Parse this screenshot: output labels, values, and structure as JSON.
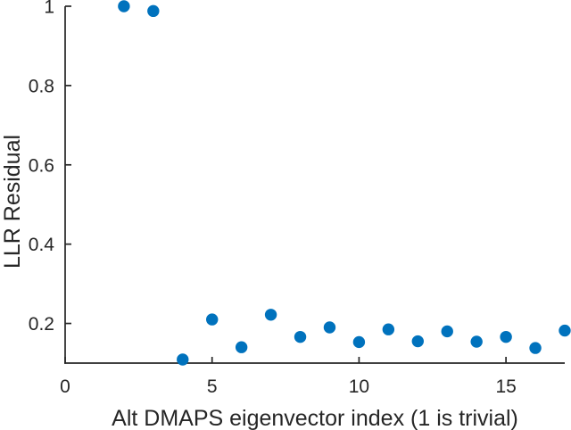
{
  "chart_data": {
    "type": "scatter",
    "title": "",
    "xlabel": "Alt DMAPS eigenvector index (1 is trivial)",
    "ylabel": "LLR Residual",
    "x": [
      2,
      3,
      4,
      5,
      6,
      7,
      8,
      9,
      10,
      11,
      12,
      13,
      14,
      15,
      16,
      17
    ],
    "y": [
      1.0,
      0.988,
      0.109,
      0.21,
      0.14,
      0.222,
      0.166,
      0.19,
      0.153,
      0.185,
      0.155,
      0.18,
      0.154,
      0.166,
      0.138,
      0.182
    ],
    "xlim": [
      0,
      17
    ],
    "ylim": [
      0.1,
      1.0
    ],
    "xticks": [
      0,
      5,
      10,
      15
    ],
    "xtick_labels": [
      "0",
      "5",
      "10",
      "15"
    ],
    "yticks": [
      0.2,
      0.4,
      0.6,
      0.8,
      1
    ],
    "ytick_labels": [
      "0.2",
      "0.4",
      "0.6",
      "0.8",
      "1"
    ],
    "grid": false,
    "legend": "none",
    "box": false,
    "tick_direction": "in",
    "marker_shape": "circle",
    "marker_color": "#0072BD",
    "axis_color": "#262626",
    "background_color": "#ffffff"
  }
}
